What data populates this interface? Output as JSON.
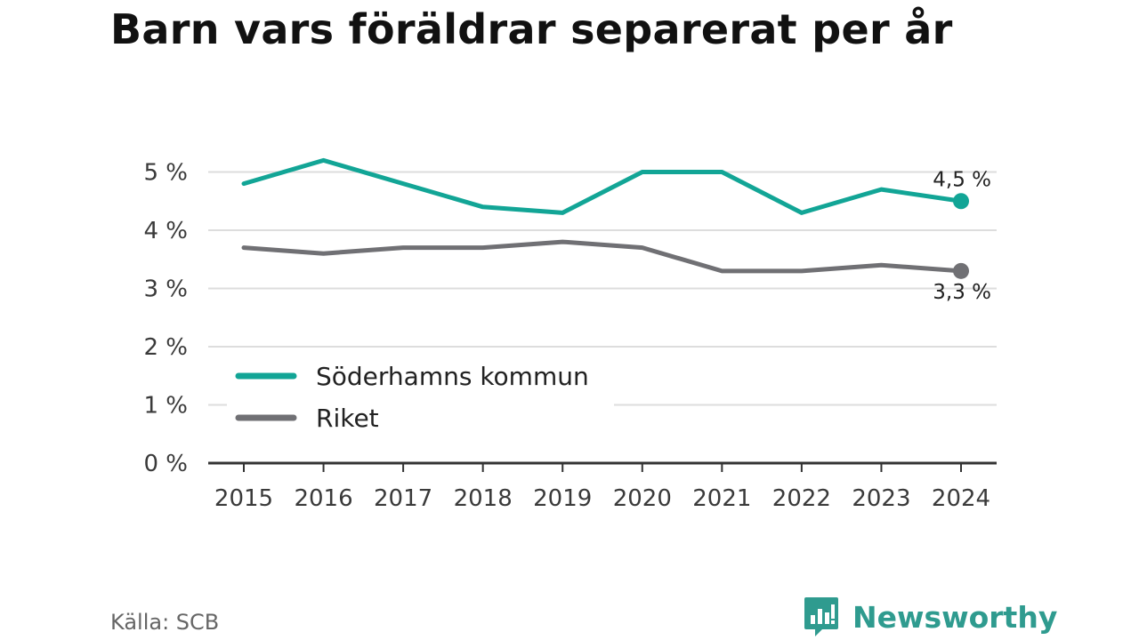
{
  "title": "Barn vars föräldrar separerat per år",
  "source": "Källa: SCB",
  "brand": {
    "name": "Newsworthy",
    "icon": "newsworthy-logo-icon",
    "color": "#2f9b8f"
  },
  "chart_data": {
    "type": "line",
    "title": "Barn vars föräldrar separerat per år",
    "xlabel": "",
    "ylabel": "",
    "x": [
      "2015",
      "2016",
      "2017",
      "2018",
      "2019",
      "2020",
      "2021",
      "2022",
      "2023",
      "2024"
    ],
    "ylim": [
      0,
      5.6
    ],
    "yticks": [
      0,
      1,
      2,
      3,
      4,
      5
    ],
    "ytick_labels": [
      "0 %",
      "1 %",
      "2 %",
      "3 %",
      "4 %",
      "5 %"
    ],
    "grid": true,
    "legend_position": "lower-left",
    "series": [
      {
        "name": "Söderhamns kommun",
        "color": "#12a596",
        "values": [
          4.8,
          5.2,
          4.8,
          4.4,
          4.3,
          5.0,
          5.0,
          4.3,
          4.7,
          4.5
        ],
        "end_label": "4,5 %"
      },
      {
        "name": "Riket",
        "color": "#707074",
        "values": [
          3.7,
          3.6,
          3.7,
          3.7,
          3.8,
          3.7,
          3.3,
          3.3,
          3.4,
          3.3
        ],
        "end_label": "3,3 %"
      }
    ]
  }
}
